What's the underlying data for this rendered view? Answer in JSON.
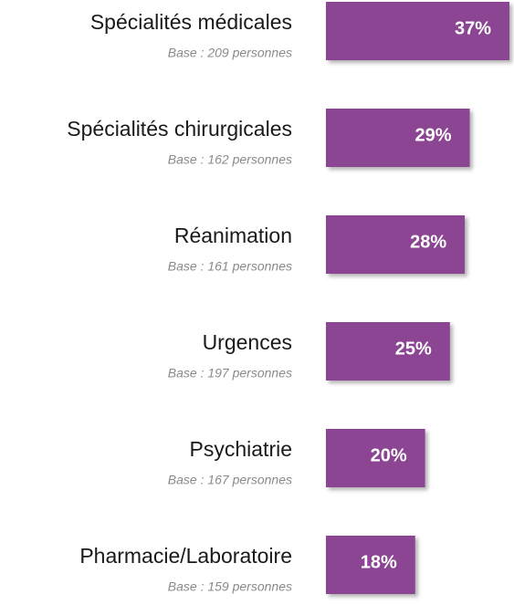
{
  "chart_data": {
    "type": "barh",
    "categories": [
      "Spécialités médicales",
      "Spécialités chirurgicales",
      "Réanimation",
      "Urgences",
      "Psychiatrie",
      "Pharmacie/Laboratoire"
    ],
    "base_labels": [
      "Base : 209 personnes",
      "Base : 162 personnes",
      "Base : 161 personnes",
      "Base : 197 personnes",
      "Base : 167 personnes",
      "Base : 159 personnes"
    ],
    "values": [
      37,
      29,
      28,
      25,
      20,
      18
    ],
    "value_labels": [
      "37%",
      "29%",
      "28%",
      "25%",
      "20%",
      "18%"
    ],
    "color": "#8b4593"
  }
}
